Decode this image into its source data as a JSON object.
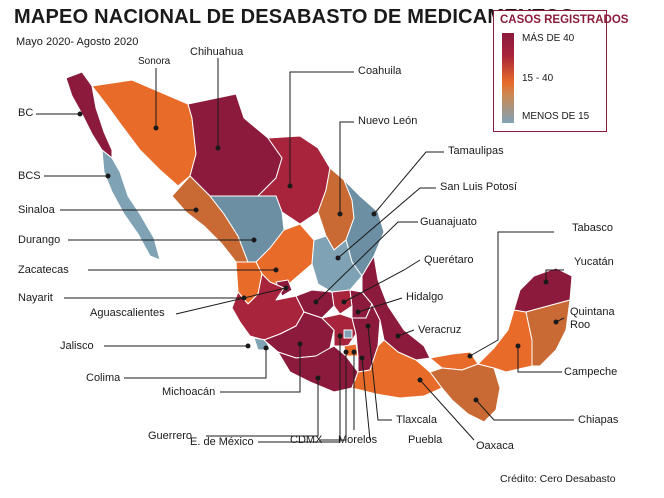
{
  "header": {
    "title": "MAPEO NACIONAL DE DESABASTO DE MEDICAMENTOS",
    "subtitle": "Mayo 2020- Agosto 2020"
  },
  "legend": {
    "title": "CASOS REGISTRADOS",
    "high": "MÁS DE 40",
    "mid": "15 - 40",
    "low": "MENOS DE 15"
  },
  "colors": {
    "high": "#8b1a3c",
    "high_alt": "#a8243c",
    "mid": "#e86b2a",
    "mid_alt": "#c96a34",
    "low": "#7fa2b5",
    "low_alt": "#6d8fa3"
  },
  "states": {
    "bc": "BC",
    "sonora": "Sonora",
    "chihuahua": "Chihuahua",
    "coahuila": "Coahuila",
    "nuevo_leon": "Nuevo León",
    "tamaulipas": "Tamaulipas",
    "slp": "San Luis Potosí",
    "bcs": "BCS",
    "sinaloa": "Sinaloa",
    "durango": "Durango",
    "zacatecas": "Zacatecas",
    "nayarit": "Nayarit",
    "aguascalientes": "Aguascalientes",
    "jalisco": "Jalisco",
    "colima": "Colima",
    "michoacan": "Michoacán",
    "guerrero": "Guerrero",
    "edomex": "E. de México",
    "cdmx": "CDMX",
    "morelos": "Morelos",
    "puebla": "Puebla",
    "guanajuato": "Guanajuato",
    "queretaro": "Querétaro",
    "hidalgo": "Hidalgo",
    "veracruz": "Veracruz",
    "tlaxcala": "Tlaxcala",
    "oaxaca": "Oaxaca",
    "chiapas": "Chiapas",
    "tabasco": "Tabasco",
    "yucatan": "Yucatán",
    "quintana_roo": "Quintana Roo",
    "campeche": "Campeche"
  },
  "credit": "Crédito: Cero Desabasto"
}
